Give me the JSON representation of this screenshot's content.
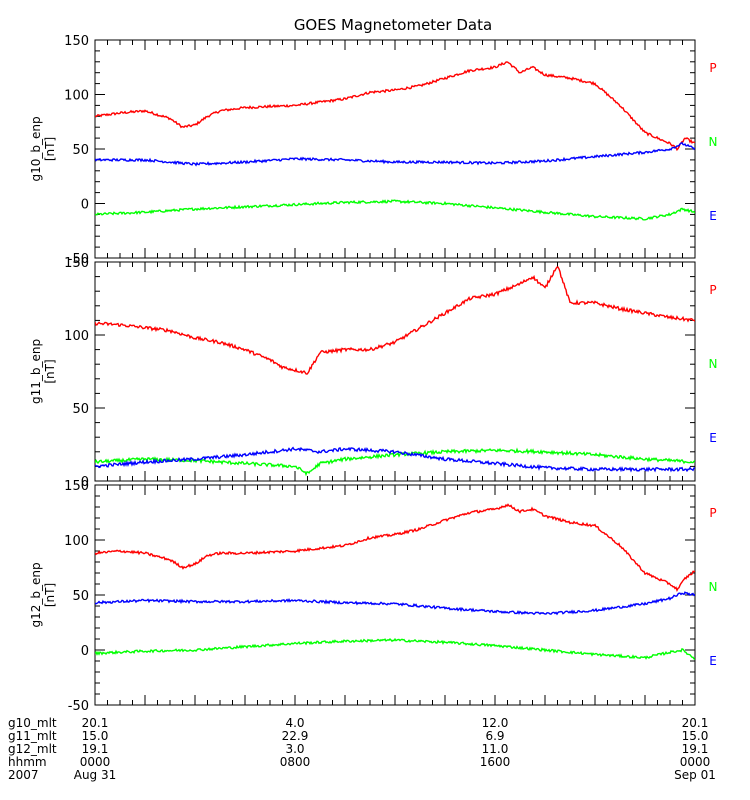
{
  "chart_data": {
    "type": "line",
    "title": "GOES Magnetometer Data",
    "x_range_hours": [
      0,
      24
    ],
    "panels": [
      {
        "ylabel": "g10_b_enp",
        "units": "[nT]",
        "ylim": [
          -50,
          150
        ],
        "yticks": [
          -50,
          0,
          50,
          100,
          150
        ],
        "series": [
          {
            "name": "P",
            "color": "#ff0000",
            "x": [
              0,
              1,
              2,
              3,
              3.5,
              4,
              4.5,
              5,
              6,
              8,
              10,
              11,
              12,
              13,
              14,
              15,
              16,
              16.5,
              17,
              17.5,
              18,
              19,
              20,
              21,
              22,
              23,
              23.3,
              23.6,
              24
            ],
            "y": [
              80,
              83,
              85,
              78,
              70,
              72,
              80,
              85,
              88,
              90,
              96,
              102,
              104,
              108,
              115,
              122,
              125,
              130,
              120,
              125,
              118,
              115,
              110,
              90,
              65,
              55,
              50,
              60,
              55
            ]
          },
          {
            "name": "N",
            "color": "#00ff00",
            "x": [
              0,
              2,
              4,
              6,
              8,
              10,
              12,
              14,
              16,
              18,
              20,
              22,
              23,
              23.5,
              24
            ],
            "y": [
              -10,
              -8,
              -5,
              -3,
              -1,
              1,
              2,
              0,
              -4,
              -8,
              -12,
              -14,
              -10,
              -5,
              -8
            ]
          },
          {
            "name": "E",
            "color": "#0000ff",
            "x": [
              0,
              2,
              4,
              6,
              8,
              10,
              12,
              14,
              16,
              18,
              20,
              22,
              23,
              23.5,
              24
            ],
            "y": [
              40,
              40,
              36,
              38,
              41,
              40,
              38,
              38,
              37,
              39,
              43,
              47,
              50,
              55,
              50
            ]
          }
        ]
      },
      {
        "ylabel": "g11_b_enp",
        "units": "[nT]",
        "ylim": [
          0,
          150
        ],
        "yticks": [
          0,
          50,
          100,
          150
        ],
        "series": [
          {
            "name": "P",
            "color": "#ff0000",
            "x": [
              0,
              1,
              2,
              3,
              4,
              5,
              6,
              7,
              7.5,
              8,
              8.5,
              9,
              10,
              11,
              12,
              13,
              14,
              15,
              16,
              17,
              17.5,
              18,
              18.5,
              19,
              20,
              21,
              22,
              23,
              24
            ],
            "y": [
              108,
              107,
              105,
              103,
              98,
              95,
              90,
              83,
              78,
              76,
              74,
              88,
              90,
              90,
              95,
              105,
              115,
              125,
              128,
              135,
              140,
              132,
              148,
              122,
              122,
              118,
              115,
              112,
              110
            ]
          },
          {
            "name": "N",
            "color": "#00ff00",
            "x": [
              0,
              2,
              4,
              6,
              8,
              8.5,
              9,
              10,
              12,
              14,
              16,
              18,
              20,
              22,
              24
            ],
            "y": [
              13,
              15,
              14,
              12,
              10,
              5,
              12,
              15,
              18,
              20,
              21,
              20,
              18,
              15,
              13
            ]
          },
          {
            "name": "E",
            "color": "#0000ff",
            "x": [
              0,
              2,
              4,
              6,
              8,
              9,
              10,
              12,
              14,
              16,
              18,
              20,
              22,
              24
            ],
            "y": [
              10,
              13,
              15,
              18,
              22,
              20,
              22,
              20,
              15,
              12,
              9,
              8,
              8,
              8
            ]
          }
        ]
      },
      {
        "ylabel": "g12_b_enp",
        "units": "[nT]",
        "ylim": [
          -50,
          150
        ],
        "yticks": [
          -50,
          0,
          50,
          100,
          150
        ],
        "series": [
          {
            "name": "P",
            "color": "#ff0000",
            "x": [
              0,
              1,
              2,
              3,
              3.5,
              4,
              4.5,
              5,
              6,
              8,
              10,
              11,
              12,
              13,
              14,
              15,
              16,
              16.5,
              17,
              17.5,
              18,
              19,
              20,
              21,
              22,
              23,
              23.3,
              23.6,
              24
            ],
            "y": [
              88,
              90,
              88,
              82,
              75,
              78,
              86,
              88,
              88,
              90,
              95,
              102,
              105,
              110,
              118,
              125,
              128,
              132,
              126,
              128,
              122,
              116,
              113,
              95,
              70,
              60,
              55,
              65,
              72
            ]
          },
          {
            "name": "N",
            "color": "#00ff00",
            "x": [
              0,
              2,
              4,
              6,
              8,
              10,
              12,
              14,
              16,
              18,
              20,
              22,
              23,
              23.5,
              24
            ],
            "y": [
              -3,
              -1,
              0,
              3,
              6,
              8,
              9,
              7,
              4,
              0,
              -4,
              -7,
              -2,
              0,
              -8
            ]
          },
          {
            "name": "E",
            "color": "#0000ff",
            "x": [
              0,
              2,
              4,
              6,
              8,
              10,
              12,
              14,
              16,
              18,
              20,
              22,
              23,
              23.5,
              24
            ],
            "y": [
              43,
              45,
              44,
              44,
              45,
              43,
              42,
              38,
              35,
              33,
              36,
              42,
              47,
              52,
              50
            ]
          }
        ]
      }
    ],
    "legend": [
      {
        "label": "P",
        "color": "#ff0000"
      },
      {
        "label": "N",
        "color": "#00ff00"
      },
      {
        "label": "E",
        "color": "#0000ff"
      }
    ],
    "footer": {
      "row_labels": [
        "g10_mlt",
        "g11_mlt",
        "g12_mlt",
        "hhmm",
        "2007"
      ],
      "columns": [
        {
          "hour": 0,
          "values": [
            "20.1",
            "15.0",
            "19.1",
            "0000",
            "Aug 31"
          ]
        },
        {
          "hour": 8,
          "values": [
            "4.0",
            "22.9",
            "3.0",
            "0800",
            ""
          ]
        },
        {
          "hour": 16,
          "values": [
            "12.0",
            "6.9",
            "11.0",
            "1600",
            ""
          ]
        },
        {
          "hour": 24,
          "values": [
            "20.1",
            "15.0",
            "19.1",
            "0000",
            "Sep 01"
          ]
        }
      ]
    }
  }
}
